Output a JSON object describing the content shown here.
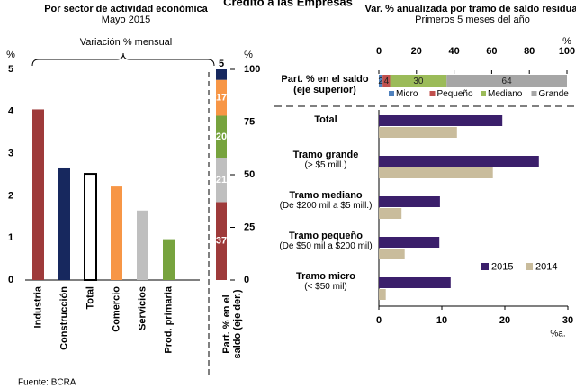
{
  "title": "Crédito a las Empresas",
  "source": "Fuente: BCRA",
  "chart_data": [
    {
      "type": "bar",
      "title": "Por sector de actividad económica",
      "subtitle": "Mayo 2015",
      "note": "Variación % mensual",
      "y_unit": "%",
      "categories": [
        "Industria",
        "Construcción",
        "Total",
        "Comercio",
        "Servicios",
        "Prod. primaria"
      ],
      "values": [
        4.05,
        2.65,
        2.52,
        2.22,
        1.65,
        0.97
      ],
      "colors": [
        "#9e3a3a",
        "#17285e",
        "none",
        "#f79646",
        "#bfbfbf",
        "#77a33e"
      ],
      "edgecolor": "#000000",
      "ylim": [
        0,
        5
      ],
      "yticks": [
        0,
        1,
        2,
        3,
        4,
        5
      ],
      "share_label": "Part. % en el saldo (eje der.)",
      "share_values": [
        37,
        21,
        20,
        17,
        5
      ],
      "share_colors": [
        "#9e3a3a",
        "#bfbfbf",
        "#77a33e",
        "#f79646",
        "#17285e"
      ],
      "y2_unit": "%",
      "y2lim": [
        0,
        100
      ],
      "y2ticks": [
        0,
        25,
        50,
        75,
        100
      ]
    },
    {
      "type": "barh",
      "title": "Var. % anualizada por tramo de saldo residual",
      "subtitle": "Primeros 5 meses del año",
      "share_label": "Part. % en el saldo (eje superior)",
      "share_series": [
        {
          "name": "Micro",
          "color": "#4f81bd",
          "values": [
            2
          ]
        },
        {
          "name": "Pequeño",
          "color": "#c0504d",
          "values": [
            4
          ]
        },
        {
          "name": "Mediano",
          "color": "#9bbb59",
          "values": [
            30
          ]
        },
        {
          "name": "Grande",
          "color": "#a6a6a6",
          "values": [
            64
          ]
        }
      ],
      "x2_unit": "%",
      "x2lim": [
        0,
        100
      ],
      "x2ticks": [
        0,
        20,
        40,
        60,
        80,
        100
      ],
      "categories": [
        "Total",
        "Tramo grande",
        "Tramo mediano",
        "Tramo pequeño",
        "Tramo micro"
      ],
      "category_notes": [
        null,
        "(> $5 mill.)",
        "(De $200 mil a $5 mill.)",
        "(De $50 mil a $200 mil)",
        "(< $50 mil)"
      ],
      "series": [
        {
          "name": "2015",
          "color": "#3b1f6b",
          "values": [
            19.6,
            25.4,
            9.7,
            9.6,
            11.4
          ]
        },
        {
          "name": "2014",
          "color": "#c9bc9c",
          "values": [
            12.4,
            18.1,
            3.6,
            4.1,
            1.1
          ]
        }
      ],
      "x_unit": "%a.",
      "xlim": [
        0,
        30
      ],
      "xticks": [
        0,
        10,
        20,
        30
      ]
    }
  ]
}
